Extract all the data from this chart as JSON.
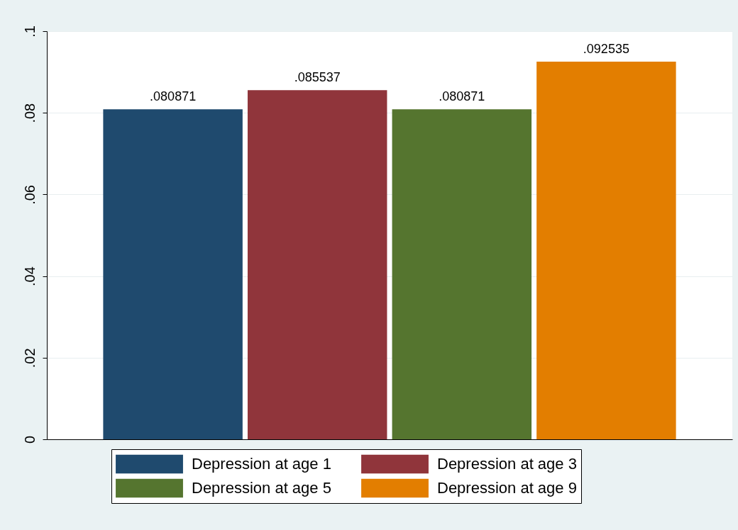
{
  "chart_data": {
    "type": "bar",
    "categories": [
      null
    ],
    "series": [
      {
        "name": "Depression at age 1",
        "color": "#1f4a6e",
        "values": [
          0.080871
        ],
        "value_labels": [
          ".080871"
        ]
      },
      {
        "name": "Depression at age 3",
        "color": "#90353b",
        "values": [
          0.085537
        ],
        "value_labels": [
          ".085537"
        ]
      },
      {
        "name": "Depression at age 5",
        "color": "#55752f",
        "values": [
          0.080871
        ],
        "value_labels": [
          ".080871"
        ]
      },
      {
        "name": "Depression at age 9",
        "color": "#e37e00",
        "values": [
          0.092535
        ],
        "value_labels": [
          ".092535"
        ]
      }
    ],
    "ylim": [
      0,
      0.1
    ],
    "yticks": [
      {
        "value": 0,
        "label": "0"
      },
      {
        "value": 0.02,
        "label": ".02"
      },
      {
        "value": 0.04,
        "label": ".04"
      },
      {
        "value": 0.06,
        "label": ".06"
      },
      {
        "value": 0.08,
        "label": ".08"
      },
      {
        "value": 0.1,
        "label": ".1"
      }
    ],
    "grid": "y",
    "legend": "bottom"
  }
}
